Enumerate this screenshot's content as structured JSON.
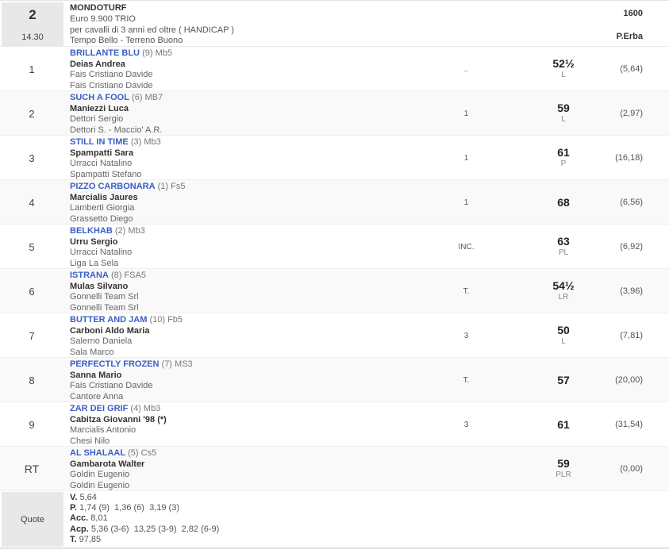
{
  "header": {
    "race_number": "2",
    "race_time": "14.30",
    "title": "MONDOTURF",
    "prize": "Euro 9.900 TRIO",
    "conditions": "per cavalli di 3 anni ed oltre ( HANDICAP )",
    "weather": "Tempo Bello - Terreno Buono",
    "distance": "1600",
    "track": "P.Erba"
  },
  "rows": [
    {
      "pos": "1",
      "horse": "BRILLANTE BLU",
      "detail": "(9) Mb5",
      "jockey": "Deias Andrea",
      "trainer": "Fais Cristiano Davide",
      "owner": "Fais Cristiano Davide",
      "mid": "..",
      "weight": "52½",
      "letters": "L",
      "odds": "(5,64)"
    },
    {
      "pos": "2",
      "horse": "SUCH A FOOL",
      "detail": "(6) MB7",
      "jockey": "Maniezzi Luca",
      "trainer": "Dettori Sergio",
      "owner": "Dettori S. - Maccio' A.R.",
      "mid": "1",
      "weight": "59",
      "letters": "L",
      "odds": "(2,97)"
    },
    {
      "pos": "3",
      "horse": "STILL IN TIME",
      "detail": "(3) Mb3",
      "jockey": "Spampatti Sara",
      "trainer": "Urracci Natalino",
      "owner": "Spampatti Stefano",
      "mid": "1",
      "weight": "61",
      "letters": "P",
      "odds": "(16,18)"
    },
    {
      "pos": "4",
      "horse": "PIZZO CARBONARA",
      "detail": "(1) Fs5",
      "jockey": "Marcialis Jaures",
      "trainer": "Lamberti Giorgia",
      "owner": "Grassetto Diego",
      "mid": "1",
      "weight": "68",
      "letters": "",
      "odds": "(6,56)"
    },
    {
      "pos": "5",
      "horse": "BELKHAB",
      "detail": "(2) Mb3",
      "jockey": "Urru Sergio",
      "trainer": "Urracci Natalino",
      "owner": "Liga La Sela",
      "mid": "INC.",
      "weight": "63",
      "letters": "PL",
      "odds": "(6,92)"
    },
    {
      "pos": "6",
      "horse": "ISTRANA",
      "detail": "(8) FSA5",
      "jockey": "Mulas Silvano",
      "trainer": "Gonnelli Team Srl",
      "owner": "Gonnelli Team Srl",
      "mid": "T.",
      "weight": "54½",
      "letters": "LR",
      "odds": "(3,96)"
    },
    {
      "pos": "7",
      "horse": "BUTTER AND JAM",
      "detail": "(10) Fb5",
      "jockey": "Carboni Aldo Maria",
      "trainer": "Salerno Daniela",
      "owner": "Sala Marco",
      "mid": "3",
      "weight": "50",
      "letters": "L",
      "odds": "(7,81)"
    },
    {
      "pos": "8",
      "horse": "PERFECTLY FROZEN",
      "detail": "(7) MS3",
      "jockey": "Sanna Mario",
      "trainer": "Fais Cristiano Davide",
      "owner": "Cantore Anna",
      "mid": "T.",
      "weight": "57",
      "letters": "",
      "odds": "(20,00)"
    },
    {
      "pos": "9",
      "horse": "ZAR DEI GRIF",
      "detail": "(4) Mb3",
      "jockey": "Cabitza Giovanni '98 (*)",
      "trainer": "Marcialis Antonio",
      "owner": "Chesi Nilo",
      "mid": "3",
      "weight": "61",
      "letters": "",
      "odds": "(31,54)"
    },
    {
      "pos": "RT",
      "horse": "AL SHALAAL",
      "detail": "(5) Cs5",
      "jockey": "Gambarota Walter",
      "trainer": "Goldin Eugenio",
      "owner": "Goldin Eugenio",
      "mid": "",
      "weight": "59",
      "letters": "PLR",
      "odds": "(0,00)"
    }
  ],
  "quote": {
    "label": "Quote",
    "lines": [
      {
        "label": "V.",
        "value": " 5,64"
      },
      {
        "label": "P.",
        "value": " 1,74 (9)  1,36 (6)  3,19 (3)"
      },
      {
        "label": "Acc.",
        "value": " 8,01"
      },
      {
        "label": "Acp.",
        "value": " 5,36 (3-6)  13,25 (3-9)  2,82 (6-9)"
      },
      {
        "label": "T.",
        "value": " 97,85"
      }
    ]
  },
  "colors": {
    "horse_link_blue": "#3b5ec6",
    "alt_row_gray": "#f9f9f9",
    "label_cell_gray": "#e8e8e8"
  }
}
